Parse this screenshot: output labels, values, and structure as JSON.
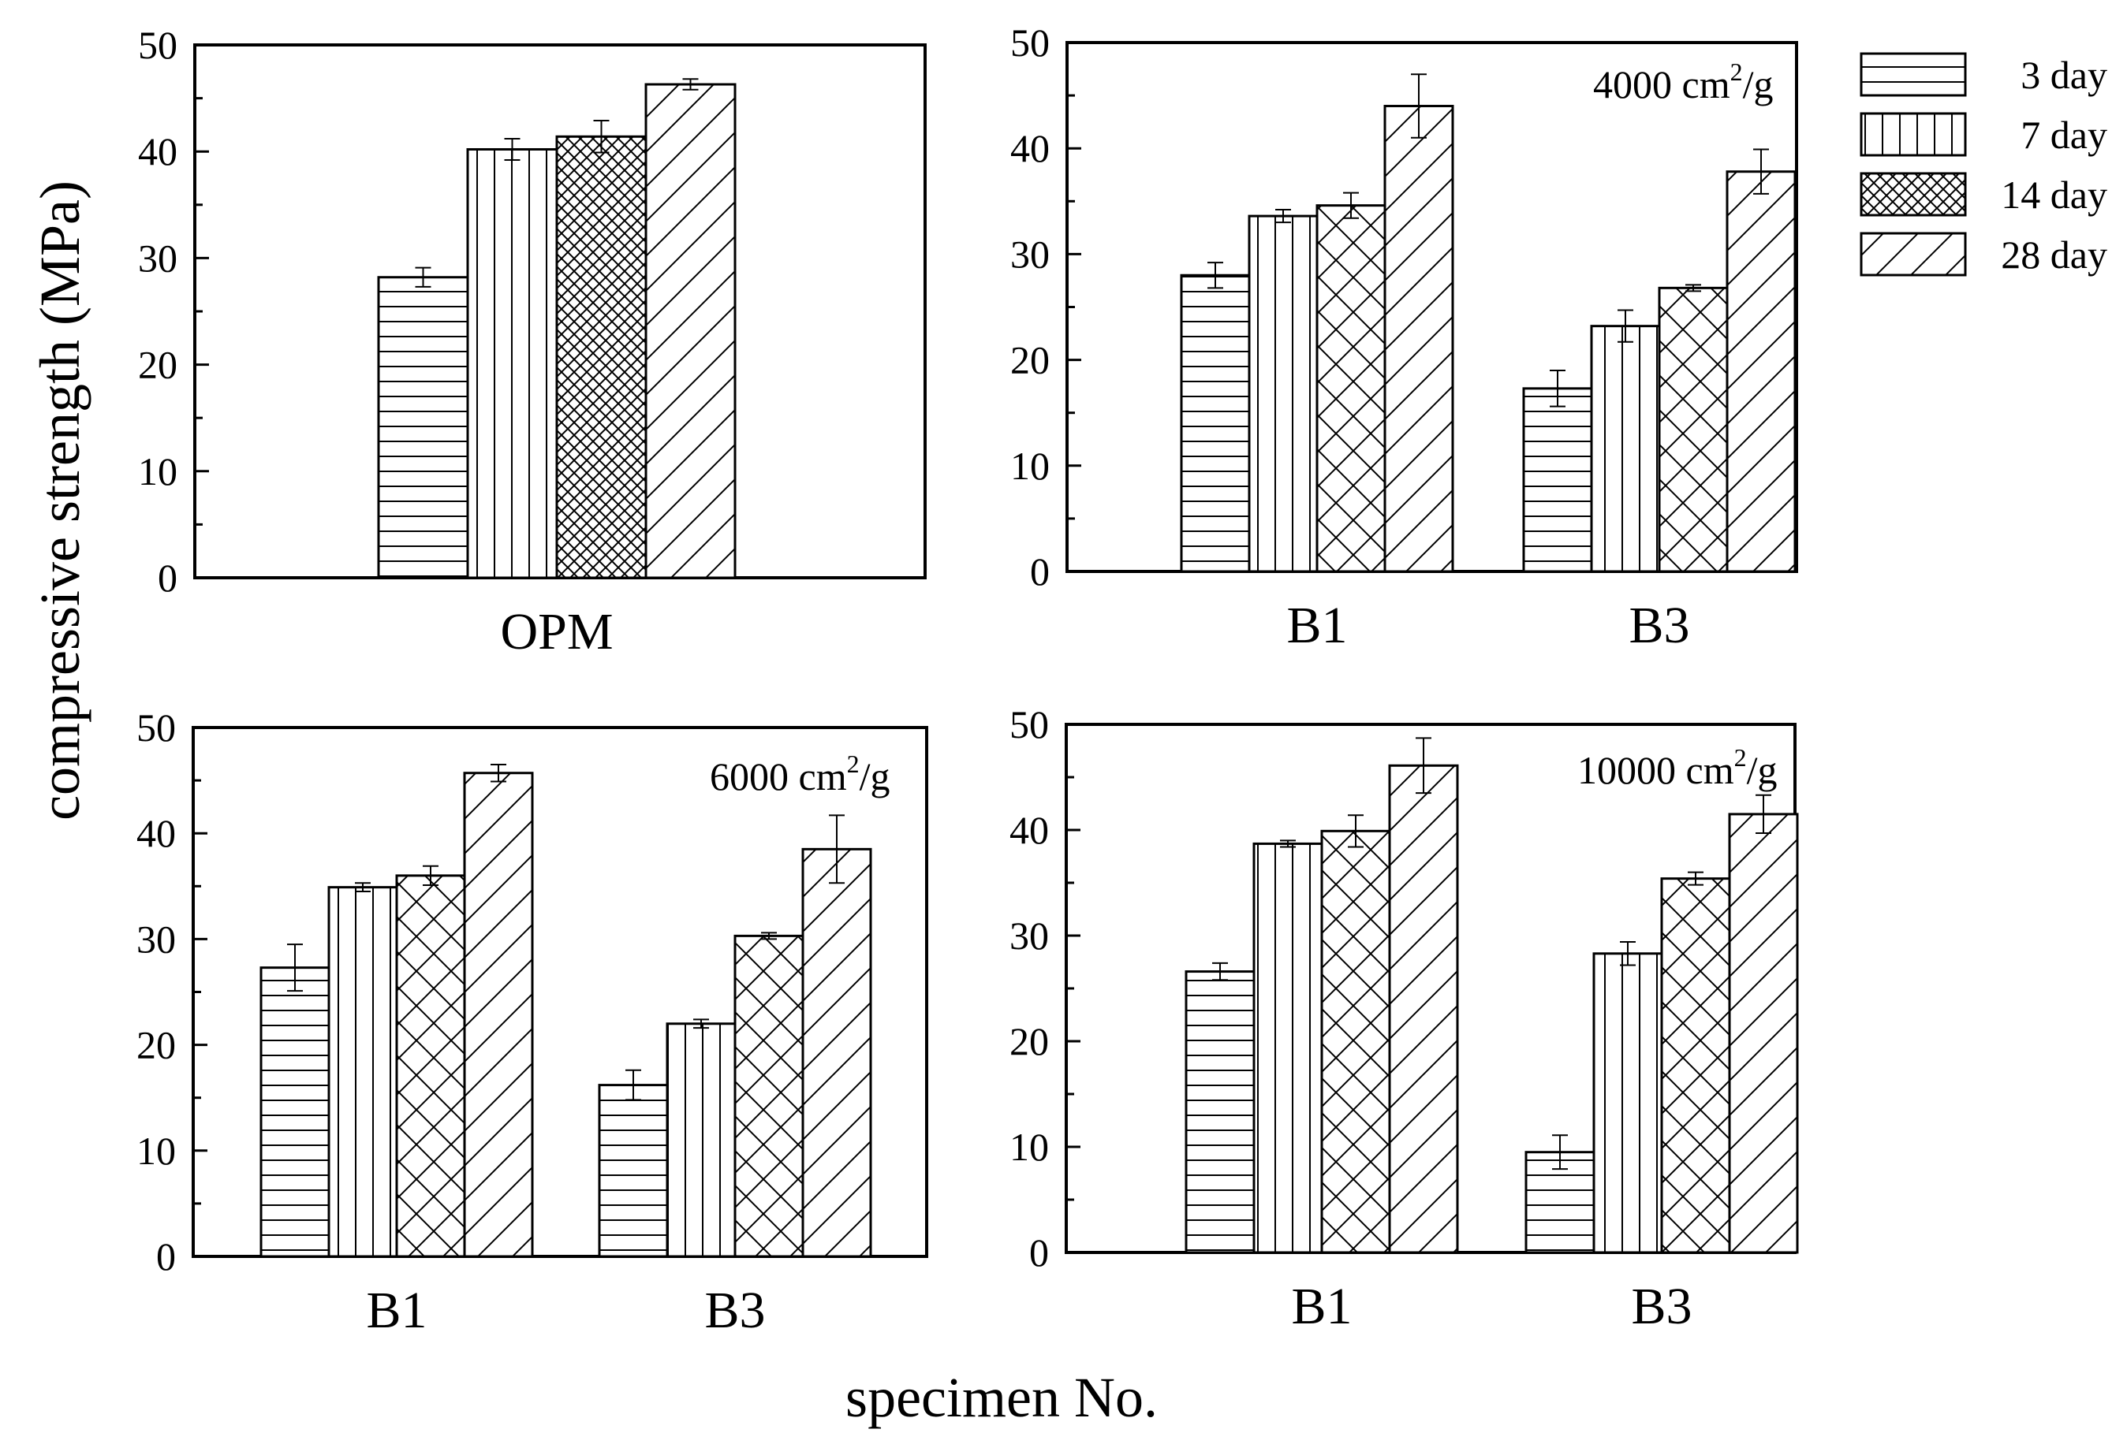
{
  "chart_data": {
    "type": "bar",
    "ylabel": "compressive strength (MPa)",
    "xlabel": "specimen No.",
    "ylim": [
      0,
      50
    ],
    "yticks": [
      0,
      10,
      20,
      30,
      40,
      50
    ],
    "legend": {
      "position": "top-right",
      "entries": [
        {
          "label": "3 day",
          "pattern": "horizontal-lines"
        },
        {
          "label": "7 day",
          "pattern": "vertical-lines"
        },
        {
          "label": "14 day",
          "pattern": "crosshatch"
        },
        {
          "label": "28 day",
          "pattern": "diagonal-lines"
        }
      ]
    },
    "panels": [
      {
        "id": "opm",
        "annotation": "",
        "categories": [
          "OPM"
        ],
        "series": [
          {
            "name": "3 day",
            "values": [
              28.2
            ],
            "errors": [
              0.9
            ]
          },
          {
            "name": "7 day",
            "values": [
              40.2
            ],
            "errors": [
              1.0
            ]
          },
          {
            "name": "14 day",
            "values": [
              41.4
            ],
            "errors": [
              1.5
            ]
          },
          {
            "name": "28 day",
            "values": [
              46.3
            ],
            "errors": [
              0.5
            ]
          }
        ]
      },
      {
        "id": "4000",
        "annotation": {
          "text": "4000 cm",
          "sup": "2",
          "suffix": "/g"
        },
        "categories": [
          "B1",
          "B3"
        ],
        "series": [
          {
            "name": "3 day",
            "values": [
              28.0,
              17.3
            ],
            "errors": [
              1.2,
              1.7
            ]
          },
          {
            "name": "7 day",
            "values": [
              33.6,
              23.2
            ],
            "errors": [
              0.6,
              1.5
            ]
          },
          {
            "name": "14 day",
            "values": [
              34.6,
              26.8
            ],
            "errors": [
              1.2,
              0.3
            ]
          },
          {
            "name": "28 day",
            "values": [
              44.0,
              37.8
            ],
            "errors": [
              3.0,
              2.1
            ]
          }
        ]
      },
      {
        "id": "6000",
        "annotation": {
          "text": "6000 cm",
          "sup": "2",
          "suffix": "/g"
        },
        "categories": [
          "B1",
          "B3"
        ],
        "series": [
          {
            "name": "3 day",
            "values": [
              27.3,
              16.2
            ],
            "errors": [
              2.2,
              1.4
            ]
          },
          {
            "name": "7 day",
            "values": [
              34.9,
              22.0
            ],
            "errors": [
              0.4,
              0.4
            ]
          },
          {
            "name": "14 day",
            "values": [
              36.0,
              30.3
            ],
            "errors": [
              0.9,
              0.3
            ]
          },
          {
            "name": "28 day",
            "values": [
              45.7,
              38.5
            ],
            "errors": [
              0.8,
              3.2
            ]
          }
        ]
      },
      {
        "id": "10000",
        "annotation": {
          "text": "10000 cm",
          "sup": "2",
          "suffix": "/g"
        },
        "categories": [
          "B1",
          "B3"
        ],
        "series": [
          {
            "name": "3 day",
            "values": [
              26.6,
              9.5
            ],
            "errors": [
              0.8,
              1.6
            ]
          },
          {
            "name": "7 day",
            "values": [
              38.7,
              28.3
            ],
            "errors": [
              0.3,
              1.1
            ]
          },
          {
            "name": "14 day",
            "values": [
              39.9,
              35.4
            ],
            "errors": [
              1.5,
              0.6
            ]
          },
          {
            "name": "28 day",
            "values": [
              46.1,
              41.5
            ],
            "errors": [
              2.6,
              1.8
            ]
          }
        ]
      }
    ]
  }
}
